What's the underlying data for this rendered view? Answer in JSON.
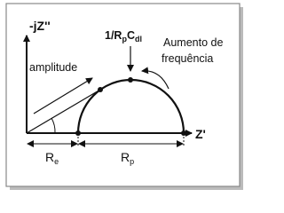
{
  "diagram": {
    "y_axis_label": "-jZ''",
    "x_axis_label": "Z'",
    "peak_label": {
      "parts": [
        "1/R",
        "p",
        "C",
        "dl"
      ]
    },
    "frequency_note": {
      "lines": [
        "Aumento de",
        "frequência"
      ]
    },
    "amplitude_label": "amplitude",
    "re_label": {
      "parts": [
        "R",
        "e"
      ]
    },
    "rp_label": {
      "parts": [
        "R",
        "p"
      ]
    }
  }
}
